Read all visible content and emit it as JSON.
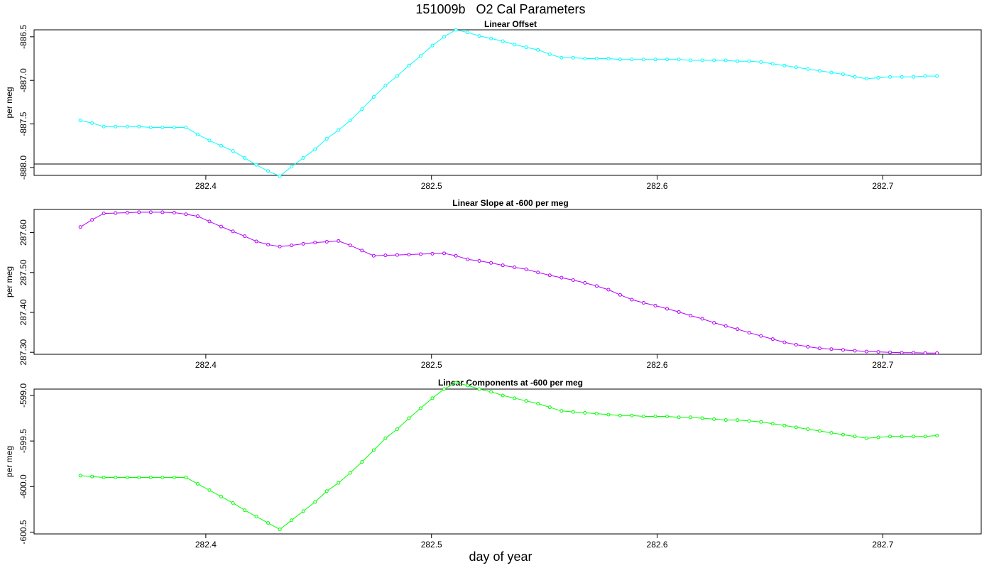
{
  "title": "151009b   O2 Cal Parameters",
  "xlabel": "day of year",
  "chart_data": [
    {
      "type": "line",
      "title": "Linear Offset",
      "ylabel": "per meg",
      "color": "#00ffff",
      "xlim": [
        282.3239,
        282.7436
      ],
      "ylim": [
        -888.09,
        -886.42
      ],
      "yticks": [
        "-888.0",
        "-887.5",
        "-887.0",
        "-886.5"
      ],
      "ytick_values": [
        -888.0,
        -887.5,
        -887.0,
        -886.5
      ],
      "xticks": [
        "282.4",
        "282.5",
        "282.6",
        "282.7"
      ],
      "xtick_values": [
        282.4,
        282.5,
        282.6,
        282.7
      ],
      "hline": -887.96,
      "x": [
        282.3444,
        282.3496,
        282.3548,
        282.36,
        282.3652,
        282.3704,
        282.3756,
        282.3808,
        282.386,
        282.3912,
        282.3964,
        282.4016,
        282.4068,
        282.412,
        282.4172,
        282.4224,
        282.4276,
        282.4328,
        282.438,
        282.4432,
        282.4484,
        282.4536,
        282.4588,
        282.464,
        282.4692,
        282.4744,
        282.4796,
        282.4848,
        282.49,
        282.4952,
        282.5004,
        282.5056,
        282.5108,
        282.516,
        282.5212,
        282.5264,
        282.5316,
        282.5368,
        282.542,
        282.5472,
        282.5524,
        282.5576,
        282.5628,
        282.568,
        282.5732,
        282.5784,
        282.5836,
        282.5888,
        282.594,
        282.5992,
        282.6044,
        282.6096,
        282.6148,
        282.62,
        282.6252,
        282.6304,
        282.6356,
        282.6408,
        282.646,
        282.6512,
        282.6564,
        282.6616,
        282.6668,
        282.672,
        282.6772,
        282.6824,
        282.6876,
        282.6928,
        282.698,
        282.7032,
        282.7084,
        282.7136,
        282.7188,
        282.724
      ],
      "y": [
        -887.46,
        -887.49,
        -887.53,
        -887.53,
        -887.53,
        -887.53,
        -887.54,
        -887.54,
        -887.54,
        -887.54,
        -887.62,
        -887.69,
        -887.75,
        -887.81,
        -887.89,
        -887.97,
        -888.04,
        -888.1,
        -887.99,
        -887.89,
        -887.79,
        -887.67,
        -887.57,
        -887.46,
        -887.33,
        -887.19,
        -887.06,
        -886.95,
        -886.83,
        -886.72,
        -886.6,
        -886.5,
        -886.42,
        -886.45,
        -886.49,
        -886.52,
        -886.55,
        -886.59,
        -886.62,
        -886.65,
        -886.7,
        -886.74,
        -886.74,
        -886.75,
        -886.75,
        -886.75,
        -886.76,
        -886.76,
        -886.76,
        -886.76,
        -886.76,
        -886.76,
        -886.77,
        -886.77,
        -886.77,
        -886.77,
        -886.78,
        -886.78,
        -886.79,
        -886.81,
        -886.83,
        -886.85,
        -886.87,
        -886.89,
        -886.91,
        -886.93,
        -886.96,
        -886.98,
        -886.97,
        -886.96,
        -886.96,
        -886.96,
        -886.95,
        -886.95
      ]
    },
    {
      "type": "line",
      "title": "Linear Slope at -600 per meg",
      "ylabel": "per meg",
      "color": "#b400ff",
      "xlim": [
        282.3239,
        282.7436
      ],
      "ylim": [
        287.295,
        287.658
      ],
      "yticks": [
        "287.30",
        "287.40",
        "287.50",
        "287.60"
      ],
      "ytick_values": [
        287.3,
        287.4,
        287.5,
        287.6
      ],
      "xticks": [
        "282.4",
        "282.5",
        "282.6",
        "282.7"
      ],
      "xtick_values": [
        282.4,
        282.5,
        282.6,
        282.7
      ],
      "x": [
        282.3444,
        282.3496,
        282.3548,
        282.36,
        282.3652,
        282.3704,
        282.3756,
        282.3808,
        282.386,
        282.3912,
        282.3964,
        282.4016,
        282.4068,
        282.412,
        282.4172,
        282.4224,
        282.4276,
        282.4328,
        282.438,
        282.4432,
        282.4484,
        282.4536,
        282.4588,
        282.464,
        282.4692,
        282.4744,
        282.4796,
        282.4848,
        282.49,
        282.4952,
        282.5004,
        282.5056,
        282.5108,
        282.516,
        282.5212,
        282.5264,
        282.5316,
        282.5368,
        282.542,
        282.5472,
        282.5524,
        282.5576,
        282.5628,
        282.568,
        282.5732,
        282.5784,
        282.5836,
        282.5888,
        282.594,
        282.5992,
        282.6044,
        282.6096,
        282.6148,
        282.62,
        282.6252,
        282.6304,
        282.6356,
        282.6408,
        282.646,
        282.6512,
        282.6564,
        282.6616,
        282.6668,
        282.672,
        282.6772,
        282.6824,
        282.6876,
        282.6928,
        282.698,
        282.7032,
        282.7084,
        282.7136,
        282.7188,
        282.724
      ],
      "y": [
        287.614,
        287.632,
        287.648,
        287.649,
        287.65,
        287.651,
        287.651,
        287.651,
        287.65,
        287.646,
        287.641,
        287.628,
        287.615,
        287.603,
        287.591,
        287.578,
        287.57,
        287.565,
        287.568,
        287.572,
        287.575,
        287.577,
        287.579,
        287.568,
        287.555,
        287.542,
        287.543,
        287.544,
        287.545,
        287.546,
        287.547,
        287.548,
        287.542,
        287.533,
        287.529,
        287.524,
        287.518,
        287.513,
        287.508,
        287.5,
        287.493,
        287.487,
        287.481,
        287.474,
        287.466,
        287.457,
        287.444,
        287.432,
        287.424,
        287.417,
        287.409,
        287.401,
        287.392,
        287.384,
        287.374,
        287.366,
        287.358,
        287.349,
        287.341,
        287.333,
        287.325,
        287.319,
        287.314,
        287.31,
        287.308,
        287.306,
        287.304,
        287.302,
        287.301,
        287.3,
        287.299,
        287.299,
        287.298,
        287.298
      ]
    },
    {
      "type": "line",
      "title": "Linear Components at -600 per meg",
      "ylabel": "per meg",
      "color": "#00ff00",
      "xlim": [
        282.3239,
        282.7436
      ],
      "ylim": [
        -600.52,
        -598.93
      ],
      "yticks": [
        "-600.5",
        "-600.0",
        "-599.5",
        "-599.0"
      ],
      "ytick_values": [
        -600.5,
        -600.0,
        -599.5,
        -599.0
      ],
      "xticks": [
        "282.4",
        "282.5",
        "282.6",
        "282.7"
      ],
      "xtick_values": [
        282.4,
        282.5,
        282.6,
        282.7
      ],
      "x": [
        282.3444,
        282.3496,
        282.3548,
        282.36,
        282.3652,
        282.3704,
        282.3756,
        282.3808,
        282.386,
        282.3912,
        282.3964,
        282.4016,
        282.4068,
        282.412,
        282.4172,
        282.4224,
        282.4276,
        282.4328,
        282.438,
        282.4432,
        282.4484,
        282.4536,
        282.4588,
        282.464,
        282.4692,
        282.4744,
        282.4796,
        282.4848,
        282.49,
        282.4952,
        282.5004,
        282.5056,
        282.5108,
        282.516,
        282.5212,
        282.5264,
        282.5316,
        282.5368,
        282.542,
        282.5472,
        282.5524,
        282.5576,
        282.5628,
        282.568,
        282.5732,
        282.5784,
        282.5836,
        282.5888,
        282.594,
        282.5992,
        282.6044,
        282.6096,
        282.6148,
        282.62,
        282.6252,
        282.6304,
        282.6356,
        282.6408,
        282.646,
        282.6512,
        282.6564,
        282.6616,
        282.6668,
        282.672,
        282.6772,
        282.6824,
        282.6876,
        282.6928,
        282.698,
        282.7032,
        282.7084,
        282.7136,
        282.7188,
        282.724
      ],
      "y": [
        -599.88,
        -599.89,
        -599.9,
        -599.9,
        -599.9,
        -599.9,
        -599.9,
        -599.9,
        -599.9,
        -599.9,
        -599.97,
        -600.04,
        -600.11,
        -600.18,
        -600.26,
        -600.33,
        -600.4,
        -600.47,
        -600.37,
        -600.27,
        -600.17,
        -600.05,
        -599.96,
        -599.85,
        -599.73,
        -599.6,
        -599.47,
        -599.37,
        -599.25,
        -599.14,
        -599.03,
        -598.93,
        -598.86,
        -598.89,
        -598.93,
        -598.96,
        -599.0,
        -599.03,
        -599.06,
        -599.09,
        -599.13,
        -599.17,
        -599.18,
        -599.19,
        -599.2,
        -599.21,
        -599.22,
        -599.22,
        -599.23,
        -599.23,
        -599.23,
        -599.24,
        -599.24,
        -599.25,
        -599.26,
        -599.27,
        -599.27,
        -599.28,
        -599.29,
        -599.31,
        -599.33,
        -599.35,
        -599.37,
        -599.39,
        -599.41,
        -599.43,
        -599.45,
        -599.47,
        -599.46,
        -599.45,
        -599.45,
        -599.45,
        -599.45,
        -599.44
      ]
    }
  ]
}
